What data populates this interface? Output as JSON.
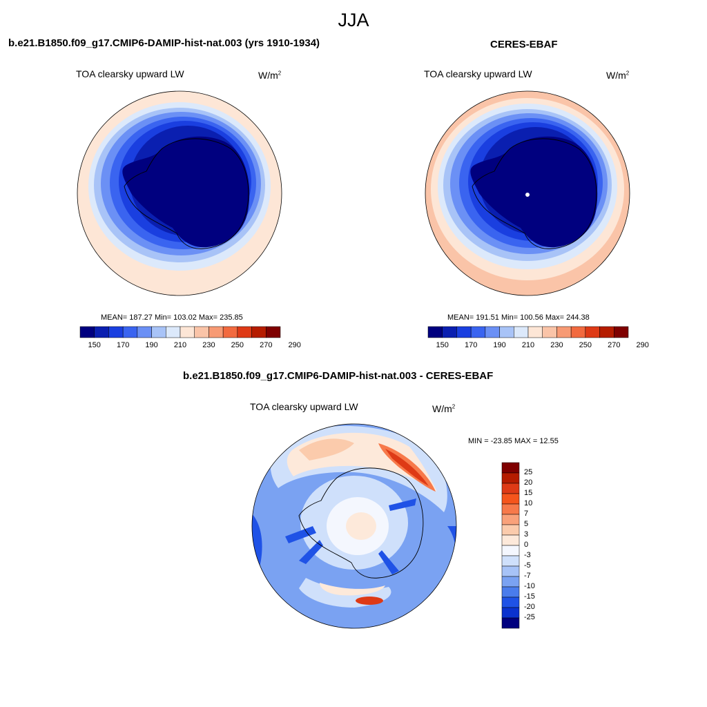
{
  "season": "JJA",
  "panels": [
    {
      "title": "b.e21.B1850.f09_g17.CMIP6-DAMIP-hist-nat.003 (yrs 1910-1934)",
      "variable": "TOA clearsky upward LW",
      "units_base": "W/m",
      "units_exp": "2",
      "stats": "MEAN= 187.27  Min= 103.02  Max= 235.85",
      "colorbar_ticks": [
        "150",
        "170",
        "190",
        "210",
        "230",
        "250",
        "270",
        "290"
      ]
    },
    {
      "title": "CERES-EBAF",
      "variable": "TOA clearsky upward LW",
      "units_base": "W/m",
      "units_exp": "2",
      "stats": "MEAN= 191.51  Min= 100.56  Max= 244.38",
      "colorbar_ticks": [
        "150",
        "170",
        "190",
        "210",
        "230",
        "250",
        "270",
        "290"
      ]
    }
  ],
  "diff": {
    "title": "b.e21.B1850.f09_g17.CMIP6-DAMIP-hist-nat.003 - CERES-EBAF",
    "variable": "TOA clearsky upward LW",
    "units_base": "W/m",
    "units_exp": "2",
    "minmax": "MIN = -23.85 MAX =  12.55",
    "colorbar_ticks": [
      "25",
      "20",
      "15",
      "10",
      "7",
      "5",
      "3",
      "0",
      "-3",
      "-5",
      "-7",
      "-10",
      "-15",
      "-20",
      "-25"
    ]
  },
  "colors": {
    "field_scale": [
      "#00007f",
      "#0a1fb0",
      "#1a3fe0",
      "#3a64f0",
      "#6b90f5",
      "#a8c3f7",
      "#dce9fb",
      "#fde6d6",
      "#fac4a8",
      "#f79a74",
      "#f26a3f",
      "#de3a16",
      "#b51c00",
      "#7f0000"
    ],
    "diff_scale": [
      "#7f0000",
      "#b51c00",
      "#de3a16",
      "#f5551c",
      "#f7794a",
      "#f9a17a",
      "#fbcbac",
      "#fde9da",
      "#f4f7fe",
      "#cfe0fb",
      "#a7c3f7",
      "#7aa2f2",
      "#4a7cec",
      "#1f52e6",
      "#0a32cf",
      "#00007f"
    ]
  }
}
